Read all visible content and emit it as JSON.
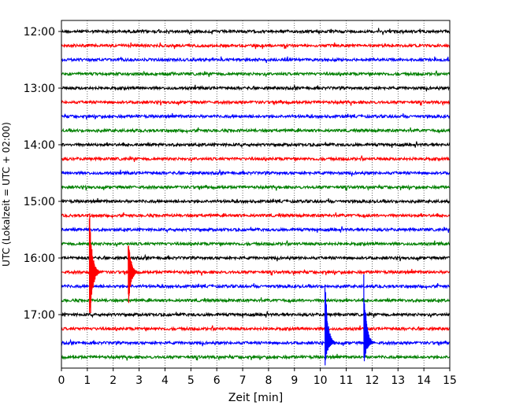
{
  "chart_data": {
    "type": "line",
    "title": "",
    "xlabel": "Zeit  [min]",
    "ylabel": "UTC (Lokalzeit = UTC + 02:00)",
    "xlim": [
      0,
      15
    ],
    "x_ticks": [
      "0",
      "1",
      "2",
      "3",
      "4",
      "5",
      "6",
      "7",
      "8",
      "9",
      "10",
      "11",
      "12",
      "13",
      "14",
      "15"
    ],
    "y_tick_labels": [
      "12:00",
      "13:00",
      "14:00",
      "15:00",
      "16:00",
      "17:00"
    ],
    "grid": "vertical dotted lines at each minute",
    "trace_interval_minutes": 15,
    "start_utc": "12:00",
    "trace_colors": [
      "#000000",
      "#ff0000",
      "#0000ff",
      "#008000"
    ],
    "traces": [
      {
        "start": "12:00",
        "color": "#000000"
      },
      {
        "start": "12:15",
        "color": "#ff0000"
      },
      {
        "start": "12:30",
        "color": "#0000ff"
      },
      {
        "start": "12:45",
        "color": "#008000"
      },
      {
        "start": "13:00",
        "color": "#000000"
      },
      {
        "start": "13:15",
        "color": "#ff0000"
      },
      {
        "start": "13:30",
        "color": "#0000ff"
      },
      {
        "start": "13:45",
        "color": "#008000"
      },
      {
        "start": "14:00",
        "color": "#000000"
      },
      {
        "start": "14:15",
        "color": "#ff0000"
      },
      {
        "start": "14:30",
        "color": "#0000ff"
      },
      {
        "start": "14:45",
        "color": "#008000"
      },
      {
        "start": "15:00",
        "color": "#000000"
      },
      {
        "start": "15:15",
        "color": "#ff0000"
      },
      {
        "start": "15:30",
        "color": "#0000ff"
      },
      {
        "start": "15:45",
        "color": "#008000"
      },
      {
        "start": "16:00",
        "color": "#000000"
      },
      {
        "start": "16:15",
        "color": "#ff0000"
      },
      {
        "start": "16:30",
        "color": "#0000ff"
      },
      {
        "start": "16:45",
        "color": "#008000"
      },
      {
        "start": "17:00",
        "color": "#000000"
      },
      {
        "start": "17:15",
        "color": "#ff0000"
      },
      {
        "start": "17:30",
        "color": "#0000ff"
      },
      {
        "start": "17:45",
        "color": "#008000"
      }
    ],
    "events": [
      {
        "trace": "16:15",
        "minute": 1.2,
        "amplitude": "large"
      },
      {
        "trace": "16:15",
        "minute": 2.7,
        "amplitude": "medium"
      },
      {
        "trace": "17:30",
        "minute": 10.3,
        "amplitude": "large"
      },
      {
        "trace": "17:30",
        "minute": 11.8,
        "amplitude": "large"
      }
    ]
  }
}
